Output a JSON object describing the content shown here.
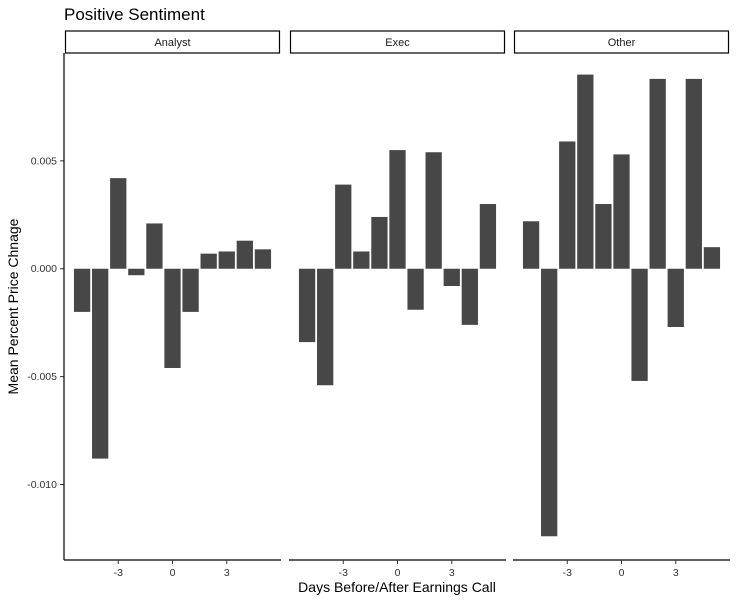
{
  "chart_data": {
    "type": "bar",
    "title": "Positive Sentiment",
    "xlabel": "Days Before/After Earnings Call",
    "ylabel": "Mean Percent Price Chnage",
    "x": [
      -5,
      -4,
      -3,
      -2,
      -1,
      0,
      1,
      2,
      3,
      4,
      5
    ],
    "x_ticks": [
      -3,
      0,
      3
    ],
    "x_tick_labels": [
      "-3",
      "0",
      "3"
    ],
    "xlim": [
      -6,
      6
    ],
    "y_ticks": [
      0.005,
      0.0,
      -0.005,
      -0.01
    ],
    "y_tick_labels": [
      "0.005",
      "0.000",
      "-0.005",
      "-0.010"
    ],
    "ylim": [
      -0.0135,
      0.01
    ],
    "grid": false,
    "bar_color": "#474747",
    "facets": [
      {
        "name": "Analyst",
        "values": [
          -0.002,
          -0.0088,
          0.0042,
          -0.0003,
          0.0021,
          -0.0046,
          -0.002,
          0.0007,
          0.0008,
          0.0013,
          0.0009
        ]
      },
      {
        "name": "Exec",
        "values": [
          -0.0034,
          -0.0054,
          0.0039,
          0.0008,
          0.0024,
          0.0055,
          -0.0019,
          0.0054,
          -0.0008,
          -0.0026,
          0.003
        ]
      },
      {
        "name": "Other",
        "values": [
          0.0022,
          -0.0124,
          0.0059,
          0.009,
          0.003,
          0.0053,
          -0.0052,
          0.0088,
          -0.0027,
          0.0088,
          0.001
        ]
      }
    ]
  }
}
